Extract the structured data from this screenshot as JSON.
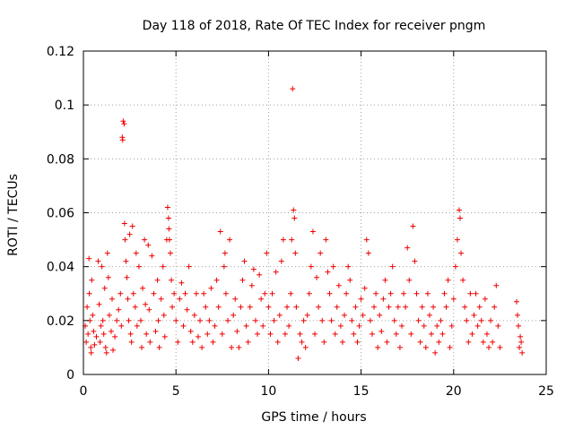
{
  "chart_data": {
    "type": "scatter",
    "title": "Day 118 of 2018, Rate Of TEC Index for receiver pngm",
    "xlabel": "GPS time / hours",
    "ylabel": "ROTI / TECUs",
    "xlim": [
      0,
      25
    ],
    "ylim": [
      0,
      0.12
    ],
    "xticks": [
      0,
      5,
      10,
      15,
      20,
      25
    ],
    "xtick_labels": [
      "0",
      "5",
      "10",
      "15",
      "20",
      "25"
    ],
    "yticks": [
      0,
      0.02,
      0.04,
      0.06,
      0.08,
      0.1,
      0.12
    ],
    "ytick_labels": [
      "0",
      "0.02",
      "0.04",
      "0.06",
      "0.08",
      "0.1",
      "0.12"
    ],
    "grid": true,
    "marker": "plus",
    "color": "#ee0000",
    "series": [
      {
        "name": "ROTI",
        "points": [
          [
            0.1,
            0.018
          ],
          [
            0.15,
            0.012
          ],
          [
            0.2,
            0.025
          ],
          [
            0.25,
            0.015
          ],
          [
            0.3,
            0.043
          ],
          [
            0.32,
            0.03
          ],
          [
            0.35,
            0.02
          ],
          [
            0.4,
            0.01
          ],
          [
            0.42,
            0.008
          ],
          [
            0.45,
            0.035
          ],
          [
            0.5,
            0.022
          ],
          [
            0.55,
            0.016
          ],
          [
            0.6,
            0.011
          ],
          [
            0.7,
            0.014
          ],
          [
            0.8,
            0.042
          ],
          [
            0.85,
            0.026
          ],
          [
            0.9,
            0.012
          ],
          [
            0.95,
            0.018
          ],
          [
            1.0,
            0.04
          ],
          [
            1.05,
            0.02
          ],
          [
            1.1,
            0.015
          ],
          [
            1.15,
            0.032
          ],
          [
            1.2,
            0.01
          ],
          [
            1.25,
            0.008
          ],
          [
            1.3,
            0.045
          ],
          [
            1.35,
            0.036
          ],
          [
            1.4,
            0.022
          ],
          [
            1.5,
            0.016
          ],
          [
            1.55,
            0.028
          ],
          [
            1.6,
            0.009
          ],
          [
            1.7,
            0.014
          ],
          [
            1.8,
            0.02
          ],
          [
            1.9,
            0.024
          ],
          [
            2.0,
            0.03
          ],
          [
            2.05,
            0.018
          ],
          [
            2.1,
            0.088
          ],
          [
            2.12,
            0.087
          ],
          [
            2.15,
            0.094
          ],
          [
            2.2,
            0.093
          ],
          [
            2.22,
            0.056
          ],
          [
            2.25,
            0.05
          ],
          [
            2.3,
            0.042
          ],
          [
            2.35,
            0.036
          ],
          [
            2.4,
            0.028
          ],
          [
            2.45,
            0.02
          ],
          [
            2.5,
            0.052
          ],
          [
            2.55,
            0.015
          ],
          [
            2.6,
            0.012
          ],
          [
            2.65,
            0.055
          ],
          [
            2.7,
            0.03
          ],
          [
            2.8,
            0.025
          ],
          [
            2.85,
            0.045
          ],
          [
            2.9,
            0.018
          ],
          [
            3.0,
            0.04
          ],
          [
            3.1,
            0.02
          ],
          [
            3.15,
            0.01
          ],
          [
            3.2,
            0.032
          ],
          [
            3.3,
            0.05
          ],
          [
            3.35,
            0.026
          ],
          [
            3.4,
            0.015
          ],
          [
            3.5,
            0.048
          ],
          [
            3.55,
            0.024
          ],
          [
            3.6,
            0.012
          ],
          [
            3.7,
            0.044
          ],
          [
            3.8,
            0.03
          ],
          [
            3.9,
            0.016
          ],
          [
            4.0,
            0.035
          ],
          [
            4.05,
            0.02
          ],
          [
            4.1,
            0.01
          ],
          [
            4.2,
            0.028
          ],
          [
            4.3,
            0.04
          ],
          [
            4.35,
            0.022
          ],
          [
            4.4,
            0.014
          ],
          [
            4.5,
            0.05
          ],
          [
            4.55,
            0.062
          ],
          [
            4.6,
            0.058
          ],
          [
            4.62,
            0.054
          ],
          [
            4.65,
            0.05
          ],
          [
            4.7,
            0.045
          ],
          [
            4.75,
            0.035
          ],
          [
            4.8,
            0.025
          ],
          [
            4.9,
            0.03
          ],
          [
            5.0,
            0.02
          ],
          [
            5.1,
            0.012
          ],
          [
            5.2,
            0.028
          ],
          [
            5.3,
            0.034
          ],
          [
            5.4,
            0.018
          ],
          [
            5.5,
            0.03
          ],
          [
            5.6,
            0.024
          ],
          [
            5.7,
            0.04
          ],
          [
            5.8,
            0.016
          ],
          [
            5.9,
            0.012
          ],
          [
            6.0,
            0.022
          ],
          [
            6.1,
            0.03
          ],
          [
            6.2,
            0.014
          ],
          [
            6.3,
            0.02
          ],
          [
            6.4,
            0.01
          ],
          [
            6.5,
            0.03
          ],
          [
            6.6,
            0.025
          ],
          [
            6.7,
            0.015
          ],
          [
            6.8,
            0.02
          ],
          [
            6.9,
            0.032
          ],
          [
            7.0,
            0.012
          ],
          [
            7.1,
            0.018
          ],
          [
            7.2,
            0.035
          ],
          [
            7.3,
            0.025
          ],
          [
            7.4,
            0.053
          ],
          [
            7.5,
            0.015
          ],
          [
            7.6,
            0.04
          ],
          [
            7.65,
            0.045
          ],
          [
            7.7,
            0.03
          ],
          [
            7.8,
            0.02
          ],
          [
            7.9,
            0.05
          ],
          [
            8.0,
            0.01
          ],
          [
            8.1,
            0.022
          ],
          [
            8.2,
            0.028
          ],
          [
            8.3,
            0.016
          ],
          [
            8.4,
            0.01
          ],
          [
            8.5,
            0.025
          ],
          [
            8.6,
            0.035
          ],
          [
            8.7,
            0.042
          ],
          [
            8.8,
            0.018
          ],
          [
            8.9,
            0.012
          ],
          [
            9.0,
            0.025
          ],
          [
            9.1,
            0.033
          ],
          [
            9.2,
            0.039
          ],
          [
            9.3,
            0.02
          ],
          [
            9.4,
            0.015
          ],
          [
            9.5,
            0.037
          ],
          [
            9.6,
            0.028
          ],
          [
            9.7,
            0.018
          ],
          [
            9.8,
            0.03
          ],
          [
            9.9,
            0.045
          ],
          [
            10.0,
            0.025
          ],
          [
            10.1,
            0.015
          ],
          [
            10.2,
            0.03
          ],
          [
            10.3,
            0.02
          ],
          [
            10.4,
            0.038
          ],
          [
            10.5,
            0.012
          ],
          [
            10.6,
            0.022
          ],
          [
            10.7,
            0.042
          ],
          [
            10.8,
            0.05
          ],
          [
            10.9,
            0.015
          ],
          [
            11.0,
            0.025
          ],
          [
            11.1,
            0.018
          ],
          [
            11.2,
            0.03
          ],
          [
            11.25,
            0.05
          ],
          [
            11.3,
            0.106
          ],
          [
            11.35,
            0.061
          ],
          [
            11.4,
            0.058
          ],
          [
            11.45,
            0.045
          ],
          [
            11.5,
            0.025
          ],
          [
            11.6,
            0.006
          ],
          [
            11.7,
            0.015
          ],
          [
            11.8,
            0.012
          ],
          [
            11.9,
            0.02
          ],
          [
            12.0,
            0.01
          ],
          [
            12.1,
            0.022
          ],
          [
            12.2,
            0.03
          ],
          [
            12.3,
            0.04
          ],
          [
            12.4,
            0.053
          ],
          [
            12.5,
            0.015
          ],
          [
            12.6,
            0.036
          ],
          [
            12.7,
            0.025
          ],
          [
            12.8,
            0.045
          ],
          [
            12.9,
            0.02
          ],
          [
            13.0,
            0.012
          ],
          [
            13.1,
            0.05
          ],
          [
            13.2,
            0.038
          ],
          [
            13.3,
            0.03
          ],
          [
            13.4,
            0.02
          ],
          [
            13.5,
            0.04
          ],
          [
            13.6,
            0.015
          ],
          [
            13.7,
            0.025
          ],
          [
            13.8,
            0.033
          ],
          [
            13.9,
            0.018
          ],
          [
            14.0,
            0.012
          ],
          [
            14.1,
            0.022
          ],
          [
            14.2,
            0.03
          ],
          [
            14.3,
            0.04
          ],
          [
            14.4,
            0.035
          ],
          [
            14.5,
            0.02
          ],
          [
            14.6,
            0.015
          ],
          [
            14.7,
            0.025
          ],
          [
            14.8,
            0.012
          ],
          [
            14.9,
            0.018
          ],
          [
            15.0,
            0.028
          ],
          [
            15.1,
            0.022
          ],
          [
            15.2,
            0.032
          ],
          [
            15.3,
            0.05
          ],
          [
            15.4,
            0.045
          ],
          [
            15.5,
            0.02
          ],
          [
            15.6,
            0.015
          ],
          [
            15.7,
            0.025
          ],
          [
            15.8,
            0.03
          ],
          [
            15.9,
            0.01
          ],
          [
            16.0,
            0.022
          ],
          [
            16.1,
            0.016
          ],
          [
            16.2,
            0.028
          ],
          [
            16.3,
            0.035
          ],
          [
            16.4,
            0.012
          ],
          [
            16.5,
            0.025
          ],
          [
            16.6,
            0.03
          ],
          [
            16.7,
            0.04
          ],
          [
            16.8,
            0.02
          ],
          [
            16.9,
            0.015
          ],
          [
            17.0,
            0.025
          ],
          [
            17.1,
            0.01
          ],
          [
            17.2,
            0.018
          ],
          [
            17.3,
            0.03
          ],
          [
            17.4,
            0.025
          ],
          [
            17.5,
            0.047
          ],
          [
            17.6,
            0.035
          ],
          [
            17.7,
            0.015
          ],
          [
            17.8,
            0.055
          ],
          [
            17.9,
            0.042
          ],
          [
            18.0,
            0.03
          ],
          [
            18.1,
            0.02
          ],
          [
            18.2,
            0.012
          ],
          [
            18.3,
            0.025
          ],
          [
            18.4,
            0.018
          ],
          [
            18.5,
            0.01
          ],
          [
            18.6,
            0.03
          ],
          [
            18.7,
            0.022
          ],
          [
            18.8,
            0.015
          ],
          [
            18.9,
            0.025
          ],
          [
            19.0,
            0.008
          ],
          [
            19.1,
            0.018
          ],
          [
            19.2,
            0.012
          ],
          [
            19.3,
            0.02
          ],
          [
            19.4,
            0.015
          ],
          [
            19.5,
            0.03
          ],
          [
            19.6,
            0.025
          ],
          [
            19.7,
            0.035
          ],
          [
            19.8,
            0.01
          ],
          [
            19.9,
            0.018
          ],
          [
            20.0,
            0.028
          ],
          [
            20.1,
            0.04
          ],
          [
            20.2,
            0.05
          ],
          [
            20.3,
            0.061
          ],
          [
            20.35,
            0.058
          ],
          [
            20.4,
            0.045
          ],
          [
            20.5,
            0.035
          ],
          [
            20.6,
            0.025
          ],
          [
            20.7,
            0.02
          ],
          [
            20.8,
            0.012
          ],
          [
            20.9,
            0.03
          ],
          [
            21.0,
            0.015
          ],
          [
            21.1,
            0.022
          ],
          [
            21.2,
            0.03
          ],
          [
            21.3,
            0.018
          ],
          [
            21.4,
            0.025
          ],
          [
            21.5,
            0.02
          ],
          [
            21.6,
            0.012
          ],
          [
            21.7,
            0.028
          ],
          [
            21.8,
            0.015
          ],
          [
            21.9,
            0.01
          ],
          [
            22.0,
            0.02
          ],
          [
            22.1,
            0.012
          ],
          [
            22.2,
            0.025
          ],
          [
            22.3,
            0.033
          ],
          [
            22.4,
            0.018
          ],
          [
            22.5,
            0.01
          ],
          [
            23.4,
            0.027
          ],
          [
            23.45,
            0.022
          ],
          [
            23.5,
            0.018
          ],
          [
            23.55,
            0.01
          ],
          [
            23.6,
            0.014
          ],
          [
            23.65,
            0.012
          ],
          [
            23.7,
            0.008
          ]
        ]
      }
    ]
  }
}
